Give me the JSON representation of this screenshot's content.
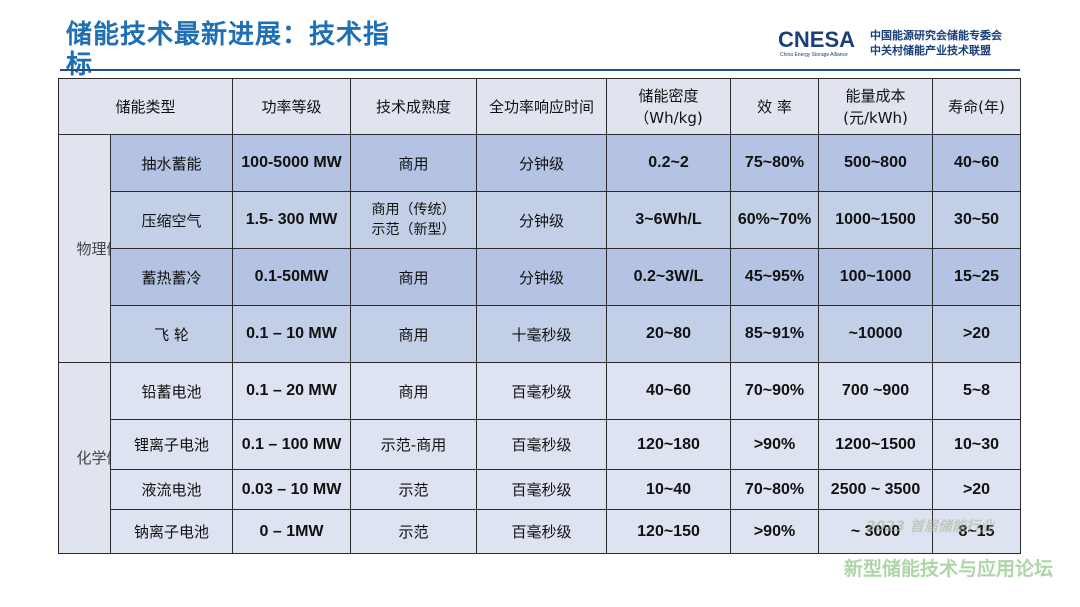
{
  "title": "储能技术最新进展：技术指标",
  "logo": {
    "mark": "CNESA",
    "sub": "China Energy Storage Alliance",
    "cn_line1": "中国能源研究会储能专委会",
    "cn_line2": "中关村储能产业技术联盟"
  },
  "table": {
    "headers": {
      "type": "储能类型",
      "power": "功率等级",
      "maturity": "技术成熟度",
      "response": "全功率响应时间",
      "density_line1": "储能密度",
      "density_line2": "（Wh/kg)",
      "efficiency": "效 率",
      "cost_line1": "能量成本",
      "cost_line2": "(元/kWh)",
      "life": "寿命(年)"
    },
    "groups": [
      {
        "label": "物理储电",
        "rows": [
          {
            "name": "抽水蓄能",
            "power": "100-5000 MW",
            "maturity": "商用",
            "response": "分钟级",
            "density": "0.2~2",
            "efficiency": "75~80%",
            "cost": "500~800",
            "life": "40~60"
          },
          {
            "name": "压缩空气",
            "power": "1.5- 300 MW",
            "maturity_line1": "商用（传统）",
            "maturity_line2": "示范（新型）",
            "response": "分钟级",
            "density": "3~6Wh/L",
            "efficiency": "60%~70%",
            "cost": "1000~1500",
            "life": "30~50"
          },
          {
            "name": "蓄热蓄冷",
            "power": "0.1-50MW",
            "maturity": "商用",
            "response": "分钟级",
            "density": "0.2~3W/L",
            "efficiency": "45~95%",
            "cost": "100~1000",
            "life": "15~25"
          },
          {
            "name": "飞 轮",
            "power": "0.1 –  10 MW",
            "maturity": "商用",
            "response": "十毫秒级",
            "density": "20~80",
            "efficiency": "85~91%",
            "cost": "~10000",
            "life": ">20"
          }
        ]
      },
      {
        "label": "化学储电",
        "rows": [
          {
            "name": "铅蓄电池",
            "power": "0.1 –  20 MW",
            "maturity": "商用",
            "response": "百毫秒级",
            "density": "40~60",
            "efficiency": "70~90%",
            "cost": "700 ~900",
            "life": "5~8"
          },
          {
            "name": "锂离子电池",
            "power": "0.1 –  100 MW",
            "maturity": "示范-商用",
            "response": "百毫秒级",
            "density": "120~180",
            "efficiency": ">90%",
            "cost": "1200~1500",
            "life": "10~30"
          },
          {
            "name": "液流电池",
            "power": "0.03 –  10 MW",
            "maturity": "示范",
            "response": "百毫秒级",
            "density": "10~40",
            "efficiency": "70~80%",
            "cost": "2500 ~ 3500",
            "life": ">20"
          },
          {
            "name": "钠离子电池",
            "power": "0 –  1MW",
            "maturity": "示范",
            "response": "百毫秒级",
            "density": "120~150",
            "efficiency": ">90%",
            "cost": "~ 3000",
            "life": "8~15"
          }
        ]
      }
    ]
  },
  "watermark": {
    "line1": "2023 首届储能行业",
    "line2": "新型储能技术与应用论坛"
  }
}
